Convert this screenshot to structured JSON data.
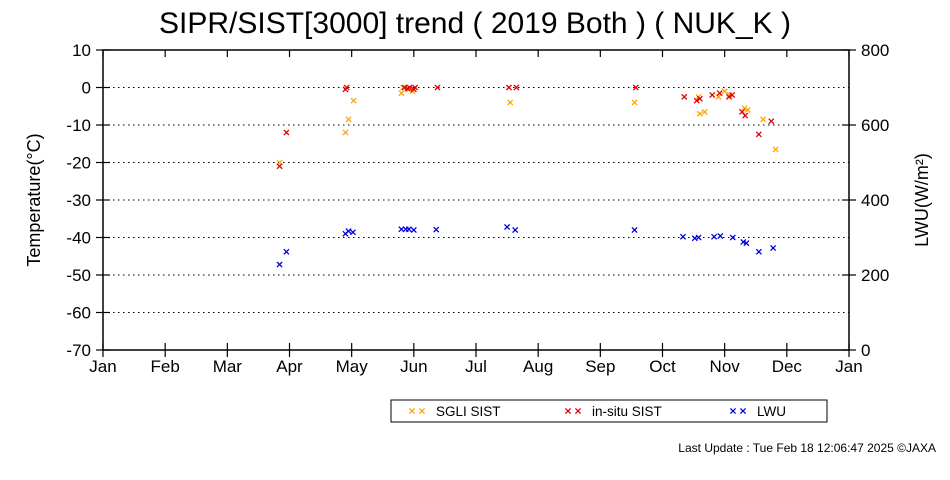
{
  "chart_data": {
    "type": "scatter",
    "title": "SIPR/SIST[3000] trend ( 2019 Both ) ( NUK_K )",
    "ylabel": "Temperature(°C)",
    "y2label": "LWU(W/m²)",
    "ylim": [
      -70,
      10
    ],
    "y2lim": [
      0,
      800
    ],
    "yticks": [
      "10",
      "0",
      "-10",
      "-20",
      "-30",
      "-40",
      "-50",
      "-60",
      "-70"
    ],
    "y2ticks": [
      "800",
      "600",
      "400",
      "200",
      "0"
    ],
    "xticks": [
      "Jan",
      "Feb",
      "Mar",
      "Apr",
      "May",
      "Jun",
      "Jul",
      "Aug",
      "Sep",
      "Oct",
      "Nov",
      "Dec",
      "Jan"
    ],
    "grid": "dotted horizontal",
    "legend_position": "bottom",
    "series": [
      {
        "name": "SGLI SIST",
        "color": "#ffa500",
        "axis": "left",
        "x": [
          2.84,
          3.9,
          3.95,
          4.03,
          4.8,
          4.83,
          4.92,
          4.98,
          6.55,
          8.55,
          9.58,
          9.6,
          9.68,
          9.9,
          10.0,
          10.08,
          10.32,
          10.37,
          10.62,
          10.82
        ],
        "y": [
          -20.0,
          -12.0,
          -8.5,
          -3.5,
          -1.5,
          0.0,
          -0.5,
          -1.0,
          -4.0,
          -4.0,
          -2.5,
          -7.0,
          -6.5,
          -2.5,
          -1.0,
          -2.0,
          -5.5,
          -6.0,
          -8.5,
          -16.5
        ]
      },
      {
        "name": "in-situ SIST",
        "color": "#dd0000",
        "axis": "left",
        "x": [
          2.84,
          2.95,
          3.9,
          3.92,
          4.85,
          4.9,
          4.93,
          5.0,
          5.02,
          5.38,
          6.53,
          6.65,
          8.57,
          9.35,
          9.55,
          9.6,
          9.8,
          9.92,
          10.07,
          10.12,
          10.28,
          10.33,
          10.55,
          10.75
        ],
        "y": [
          -21.0,
          -12.0,
          -0.5,
          0.0,
          0.0,
          -0.3,
          0.0,
          -0.5,
          0.0,
          0.0,
          0.0,
          0.0,
          0.0,
          -2.5,
          -3.5,
          -3.0,
          -2.0,
          -1.5,
          -2.5,
          -2.0,
          -6.5,
          -7.5,
          -12.5,
          -9.0
        ]
      },
      {
        "name": "LWU",
        "color": "#0000dd",
        "axis": "right",
        "x": [
          2.84,
          2.95,
          3.9,
          3.95,
          4.02,
          4.8,
          4.87,
          4.92,
          5.0,
          5.36,
          6.5,
          6.63,
          8.55,
          9.33,
          9.52,
          9.58,
          9.83,
          9.93,
          10.13,
          10.3,
          10.35,
          10.55,
          10.78
        ],
        "y": [
          228,
          262,
          310,
          317,
          314,
          322,
          322,
          322,
          320,
          321,
          328,
          320,
          320,
          302,
          298,
          300,
          302,
          304,
          300,
          288,
          285,
          262,
          272
        ]
      }
    ]
  },
  "footer": {
    "last_update": "Last Update : Tue Feb 18 12:06:47 2025",
    "copyright": "©JAXA"
  }
}
